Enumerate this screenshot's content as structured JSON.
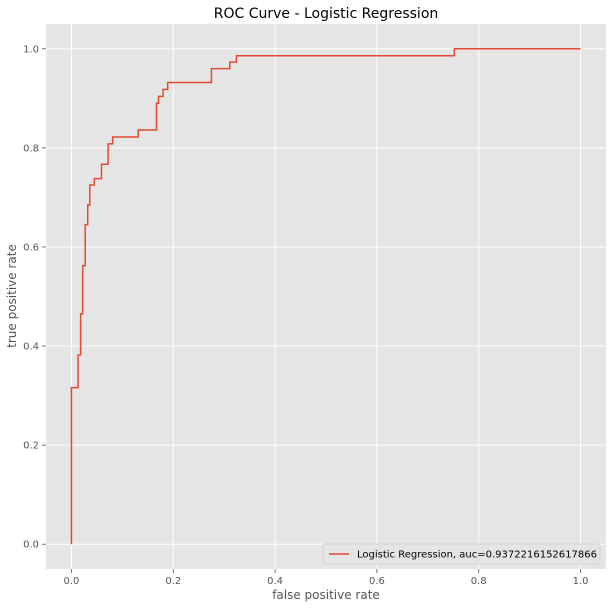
{
  "chart_data": {
    "type": "line",
    "title": "ROC Curve - Logistic Regression",
    "xlabel": "false positive rate",
    "ylabel": "true positive rate",
    "xlim": [
      -0.05,
      1.05
    ],
    "ylim": [
      -0.05,
      1.05
    ],
    "xticks": [
      0.0,
      0.2,
      0.4,
      0.6,
      0.8,
      1.0
    ],
    "yticks": [
      0.0,
      0.2,
      0.4,
      0.6,
      0.8,
      1.0
    ],
    "xtick_labels": [
      "0.0",
      "0.2",
      "0.4",
      "0.6",
      "0.8",
      "1.0"
    ],
    "ytick_labels": [
      "0.0",
      "0.2",
      "0.4",
      "0.6",
      "0.8",
      "1.0"
    ],
    "grid": true,
    "legend_position": "lower-right",
    "colors": {
      "background": "#e5e5e5",
      "grid": "#ffffff",
      "line": "#e24a33"
    },
    "series": [
      {
        "name": "Logistic Regression, auc=0.9372216152617866",
        "x": [
          0.0,
          0.0,
          0.0,
          0.0,
          0.013,
          0.013,
          0.013,
          0.018,
          0.018,
          0.022,
          0.022,
          0.027,
          0.027,
          0.032,
          0.032,
          0.036,
          0.036,
          0.045,
          0.045,
          0.05,
          0.05,
          0.059,
          0.059,
          0.072,
          0.072,
          0.081,
          0.081,
          0.09,
          0.09,
          0.131,
          0.131,
          0.167,
          0.167,
          0.171,
          0.171,
          0.18,
          0.18,
          0.189,
          0.189,
          0.275,
          0.275,
          0.311,
          0.311,
          0.324,
          0.324,
          0.752,
          0.752,
          1.0
        ],
        "y": [
          0.0,
          0.0,
          0.316,
          0.316,
          0.316,
          0.316,
          0.382,
          0.382,
          0.465,
          0.465,
          0.562,
          0.562,
          0.645,
          0.645,
          0.685,
          0.685,
          0.725,
          0.725,
          0.738,
          0.738,
          0.738,
          0.738,
          0.767,
          0.767,
          0.808,
          0.808,
          0.822,
          0.822,
          0.822,
          0.822,
          0.836,
          0.836,
          0.89,
          0.89,
          0.904,
          0.904,
          0.918,
          0.918,
          0.932,
          0.932,
          0.96,
          0.96,
          0.973,
          0.973,
          0.986,
          0.986,
          1.0,
          1.0
        ]
      }
    ]
  }
}
